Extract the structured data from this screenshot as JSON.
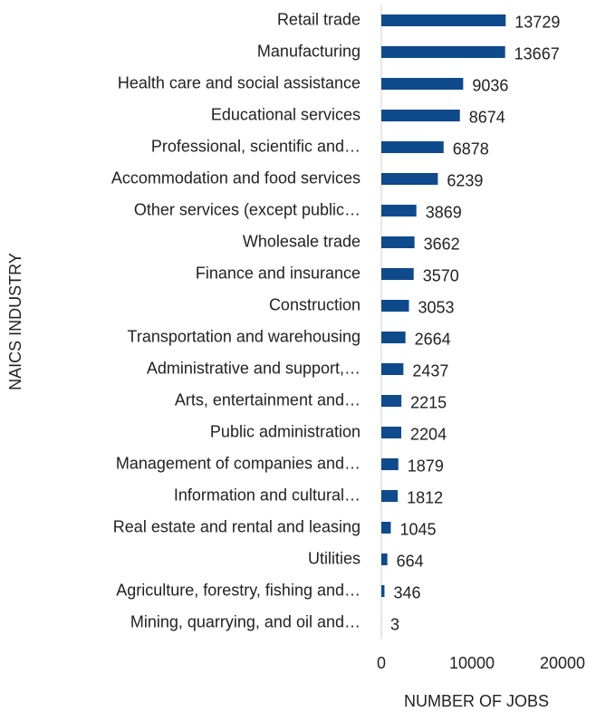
{
  "chart_data": {
    "type": "barh",
    "categories": [
      "Retail trade",
      "Manufacturing",
      "Health care and social assistance",
      "Educational services",
      "Professional, scientific and…",
      "Accommodation and food services",
      "Other services (except public…",
      "Wholesale trade",
      "Finance and insurance",
      "Construction",
      "Transportation and warehousing",
      "Administrative and support,…",
      "Arts, entertainment and…",
      "Public administration",
      "Management of companies and…",
      "Information and cultural…",
      "Real estate and rental and leasing",
      "Utilities",
      "Agriculture, forestry, fishing and…",
      "Mining, quarrying, and oil and…"
    ],
    "values": [
      13729,
      13667,
      9036,
      8674,
      6878,
      6239,
      3869,
      3662,
      3570,
      3053,
      2664,
      2437,
      2215,
      2204,
      1879,
      1812,
      1045,
      664,
      346,
      3
    ],
    "color": "#0e4a8c",
    "xlim": [
      0,
      20000
    ],
    "xticks": [
      0,
      10000,
      20000
    ],
    "xlabel": "NUMBER OF JOBS",
    "ylabel": "NAICS INDUSTRY",
    "grid": false
  }
}
